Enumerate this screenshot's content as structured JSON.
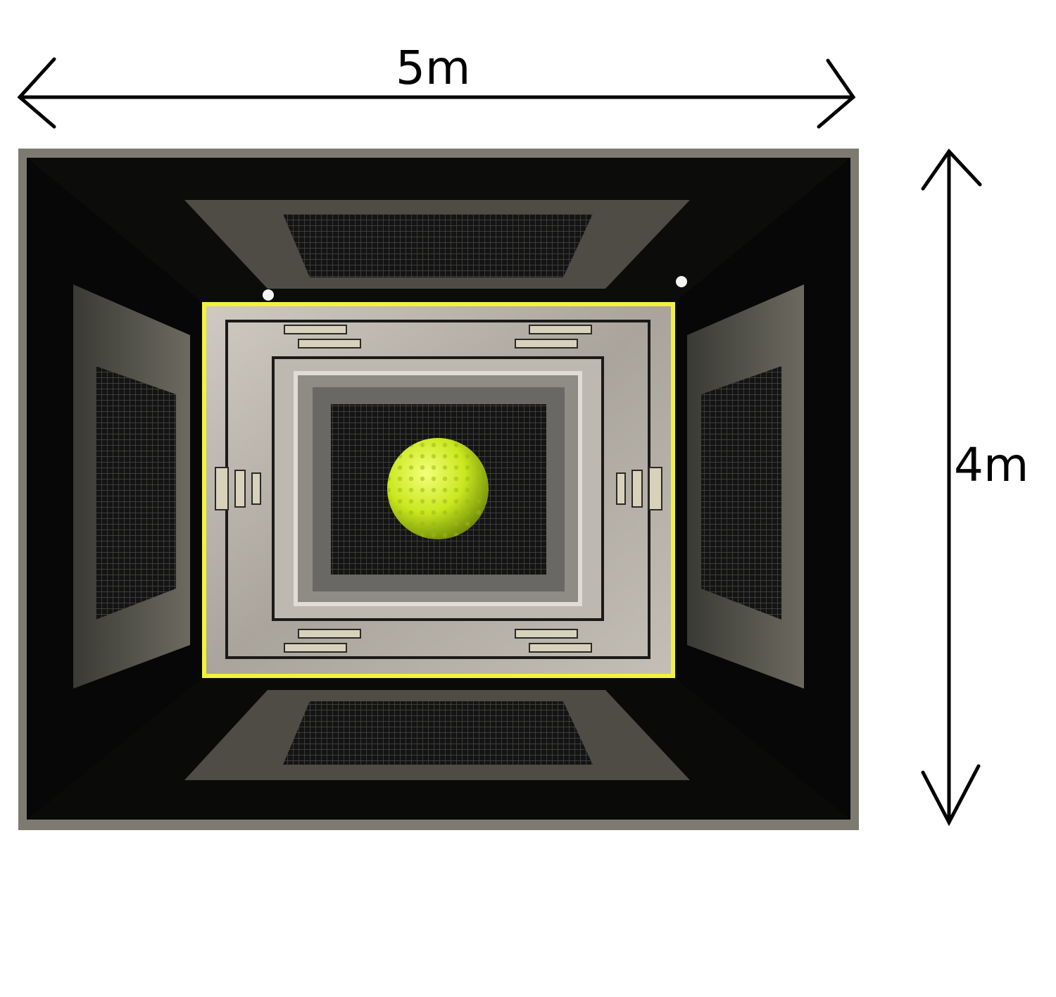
{
  "dimensions": {
    "width_label": "5m",
    "height_label": "4m"
  },
  "scene": {
    "subject": "ball-in-room",
    "ball_color": "#c9e81e",
    "frame_color": "#f2f23a",
    "wall_color": "#1a1a18",
    "panel_color": "#8c8a80",
    "back_wall_color": "#b8b4ac"
  }
}
